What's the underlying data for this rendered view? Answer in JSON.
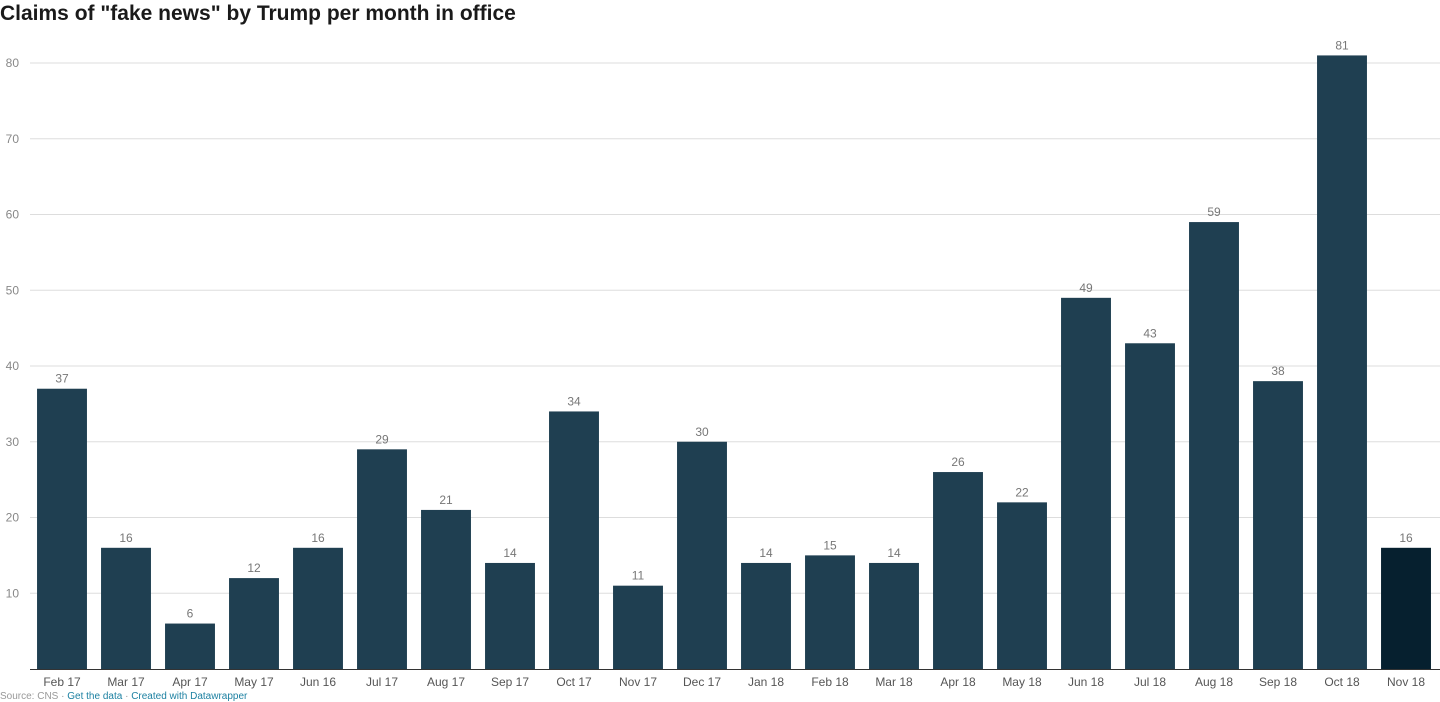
{
  "chart_data": {
    "type": "bar",
    "title": "Claims of \"fake news\" by Trump per month in office",
    "xlabel": "",
    "ylabel": "",
    "categories": [
      "Feb 17",
      "Mar 17",
      "Apr 17",
      "May 17",
      "Jun 16",
      "Jul 17",
      "Aug 17",
      "Sep 17",
      "Oct 17",
      "Nov 17",
      "Dec 17",
      "Jan 18",
      "Feb 18",
      "Mar 18",
      "Apr 18",
      "May 18",
      "Jun 18",
      "Jul 18",
      "Aug 18",
      "Sep 18",
      "Oct 18",
      "Nov 18"
    ],
    "values": [
      37,
      16,
      6,
      12,
      16,
      29,
      21,
      14,
      34,
      11,
      30,
      14,
      15,
      14,
      26,
      22,
      49,
      43,
      59,
      38,
      81,
      16
    ],
    "ylim": [
      0,
      80
    ],
    "yticks": [
      10,
      20,
      30,
      40,
      50,
      60,
      70,
      80
    ],
    "grid": true,
    "legend": "none",
    "colors": {
      "bar": "#1f3f51",
      "highlight": "#06202f",
      "grid": "#dddddd"
    },
    "highlight_index": 21
  },
  "source": {
    "prefix": "Source: CNS",
    "link_text": "Get the data",
    "credit": "Created with Datawrapper"
  }
}
